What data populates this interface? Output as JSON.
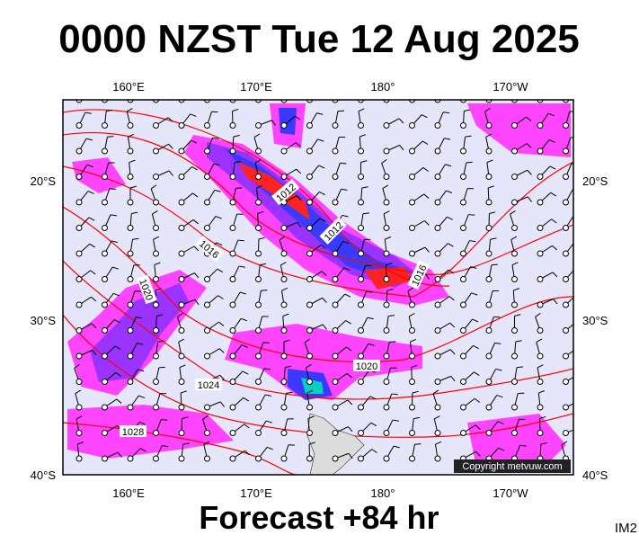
{
  "header": {
    "title": "0000 NZST Tue 12 Aug 2025"
  },
  "map": {
    "top_longitudes": [
      "160°E",
      "170°E",
      "180°",
      "170°W"
    ],
    "bottom_longitudes": [
      "160°E",
      "170°E",
      "180°",
      "170°W"
    ],
    "left_latitudes": [
      "20°S",
      "30°S",
      "40°S"
    ],
    "right_latitudes": [
      "20°S",
      "30°S",
      "40°S"
    ],
    "isobar_labels": [
      "1012",
      "1012",
      "1016",
      "1016",
      "1020",
      "1020",
      "1024",
      "1028"
    ],
    "copyright": "Copyright metvuw.com"
  },
  "footer": {
    "forecast": "Forecast +84 hr",
    "code": "IM2"
  }
}
